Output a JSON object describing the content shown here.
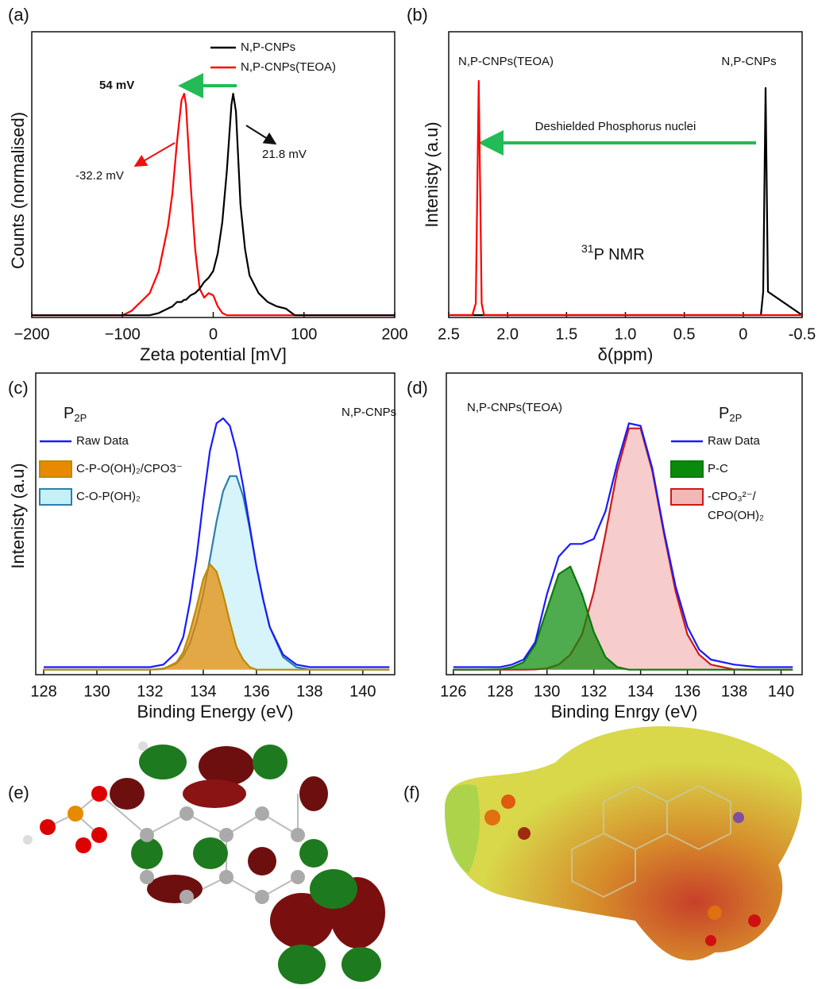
{
  "chart_data": [
    {
      "type": "line",
      "panel_label": "(a)",
      "x_label": "Zeta potential [mV]",
      "y_label": "Counts (normalised)",
      "xlim": [
        -200,
        200
      ],
      "xticks": [
        {
          "value": -200,
          "label": "−200"
        },
        {
          "value": -100,
          "label": "−100"
        },
        0,
        100,
        200
      ],
      "ylim": [
        -0.01,
        1.28
      ],
      "legend": "upper right",
      "x": [
        -200,
        -100,
        -90,
        -80,
        -70,
        -60,
        -50,
        -45,
        -40,
        -35,
        -32,
        -30,
        -25,
        -20,
        -15,
        -10,
        -5,
        0,
        5,
        10,
        15,
        20,
        22,
        25,
        30,
        35,
        40,
        50,
        60,
        70,
        80,
        90,
        200
      ],
      "series": [
        {
          "name": "N,P-CNPs",
          "color": "#000000",
          "values": [
            0,
            0,
            0,
            0,
            0,
            0.01,
            0.03,
            0.04,
            0.06,
            0.06,
            0.07,
            0.07,
            0.09,
            0.1,
            0.12,
            0.15,
            0.17,
            0.2,
            0.28,
            0.42,
            0.65,
            0.95,
            1.0,
            0.92,
            0.5,
            0.3,
            0.18,
            0.1,
            0.06,
            0.04,
            0.03,
            0,
            0
          ]
        },
        {
          "name": "N,P-CNPs(TEOA)",
          "color": "#ff0000",
          "values": [
            0,
            0,
            0.02,
            0.06,
            0.1,
            0.2,
            0.4,
            0.55,
            0.78,
            0.97,
            1.0,
            0.95,
            0.6,
            0.3,
            0.12,
            0.08,
            0.1,
            0.09,
            0.04,
            0.01,
            0,
            0,
            0,
            0,
            0,
            0,
            0,
            0,
            0,
            0,
            0,
            0,
            0
          ]
        }
      ],
      "annotations": [
        "54 mV",
        "21.8 mV",
        "-32.2 mV"
      ]
    },
    {
      "type": "line",
      "panel_label": "(b)",
      "x_label": "δ(ppm)",
      "y_label": "Intenisty (a.u)",
      "xlim": [
        2.5,
        -0.5
      ],
      "xticks": [
        2.5,
        {
          "value": 2,
          "label": "2.0"
        },
        1.5,
        {
          "value": 1,
          "label": "1.0"
        },
        0.5,
        0,
        -0.5
      ],
      "ylim": [
        -0.01,
        1.21
      ],
      "x": [
        2.5,
        2.3,
        2.27,
        2.245,
        2.22,
        2.2,
        1,
        0,
        -0.15,
        -0.17,
        -0.19,
        -0.21,
        -0.5
      ],
      "series": [
        {
          "name": "N,P-CNPs(TEOA)",
          "color": "#ff0000",
          "values": [
            0,
            0,
            0.05,
            1,
            0.05,
            0,
            0,
            0,
            0,
            0,
            0,
            0,
            0
          ]
        },
        {
          "name": "N,P-CNPs",
          "color": "#000000",
          "values": [
            0,
            0,
            0,
            0,
            0,
            0,
            0,
            0,
            0,
            0.1,
            0.97,
            0.1,
            0
          ]
        }
      ],
      "annotations": [
        "Deshielded Phosphorus nuclei"
      ],
      "nmr_label": {
        "sup": "31",
        "text": "P NMR"
      }
    },
    {
      "type": "line",
      "panel_label": "(c)",
      "title": {
        "main": "P",
        "sub": "2P"
      },
      "subtitle": "N,P-CNPs",
      "x_label": "Binding Energy (eV)",
      "y_label": "Intenisty (a.u)",
      "xlim": [
        127.7,
        141.2
      ],
      "xticks": [
        128,
        130,
        132,
        134,
        136,
        138,
        140
      ],
      "ylim": [
        -0.02,
        1.18
      ],
      "legend": "upper left",
      "x": [
        128,
        130,
        131,
        132,
        132.5,
        133,
        133.25,
        133.5,
        133.75,
        134,
        134.25,
        134.5,
        134.75,
        135,
        135.25,
        135.5,
        135.75,
        136,
        136.25,
        136.5,
        137,
        137.5,
        138,
        139,
        141
      ],
      "series": [
        {
          "name": "Raw Data",
          "color": "#1a1aff",
          "values": [
            0.01,
            0.01,
            0.01,
            0.01,
            0.02,
            0.07,
            0.13,
            0.27,
            0.45,
            0.67,
            0.87,
            0.98,
            1.0,
            0.97,
            0.87,
            0.73,
            0.57,
            0.41,
            0.28,
            0.17,
            0.06,
            0.02,
            0.01,
            0.01,
            0.01
          ]
        },
        {
          "name": "C-P-O(OH)₂/CPO3⁻",
          "color": "#c08a00",
          "fill": "#e88a00",
          "values": [
            0,
            0,
            0,
            0,
            0.002,
            0.03,
            0.07,
            0.15,
            0.25,
            0.36,
            0.42,
            0.39,
            0.3,
            0.19,
            0.09,
            0.04,
            0.01,
            0,
            0,
            0,
            0,
            0,
            0,
            0,
            0
          ]
        },
        {
          "name": "C-O-P(OH)₂",
          "color": "#2a7fb0",
          "fill": "#c6f0f8",
          "values": [
            0,
            0,
            0,
            0,
            0.004,
            0.025,
            0.054,
            0.106,
            0.19,
            0.3,
            0.44,
            0.59,
            0.71,
            0.77,
            0.77,
            0.69,
            0.56,
            0.41,
            0.28,
            0.17,
            0.05,
            0.01,
            0,
            0,
            0
          ]
        }
      ]
    },
    {
      "type": "line",
      "panel_label": "(d)",
      "title": {
        "main": "P",
        "sub": "2P"
      },
      "subtitle": "N,P-CNPs(TEOA)",
      "x_label": "Binding Enrgy (eV)",
      "xlim": [
        125.7,
        140.9
      ],
      "xticks": [
        126,
        128,
        130,
        132,
        134,
        136,
        138,
        140
      ],
      "ylim": [
        -0.02,
        1.18
      ],
      "legend": "upper right",
      "x": [
        126,
        127,
        128,
        128.5,
        129,
        129.5,
        130,
        130.5,
        131,
        131.5,
        132,
        132.5,
        133,
        133.5,
        134,
        134.5,
        135,
        135.5,
        136,
        136.5,
        137,
        138,
        139,
        140,
        140.5
      ],
      "series": [
        {
          "name": "Raw Data",
          "color": "#1a1aff",
          "values": [
            0.01,
            0.01,
            0.01,
            0.02,
            0.04,
            0.11,
            0.3,
            0.45,
            0.5,
            0.5,
            0.52,
            0.63,
            0.82,
            0.98,
            0.97,
            0.8,
            0.55,
            0.33,
            0.17,
            0.08,
            0.04,
            0.02,
            0.01,
            0.01,
            0.01
          ]
        },
        {
          "name": "P-C",
          "color": "#0a7a0a",
          "fill": "#0a8a0a",
          "values": [
            0,
            0,
            0.001,
            0.01,
            0.03,
            0.1,
            0.24,
            0.38,
            0.41,
            0.3,
            0.15,
            0.05,
            0.01,
            0,
            0,
            0,
            0,
            0,
            0,
            0,
            0,
            0,
            0,
            0,
            0
          ]
        },
        {
          "name": "-CPO₃²⁻/CPO(OH)₂",
          "color": "#d01818",
          "fill": "#f2b8b8",
          "values": [
            0,
            0,
            0,
            0,
            0,
            0.001,
            0.005,
            0.02,
            0.06,
            0.14,
            0.31,
            0.54,
            0.79,
            0.96,
            0.96,
            0.79,
            0.54,
            0.31,
            0.14,
            0.06,
            0.02,
            0.001,
            0,
            0,
            0
          ]
        }
      ]
    }
  ],
  "figures": [
    {
      "label": "(e)"
    },
    {
      "label": "(f)"
    }
  ]
}
